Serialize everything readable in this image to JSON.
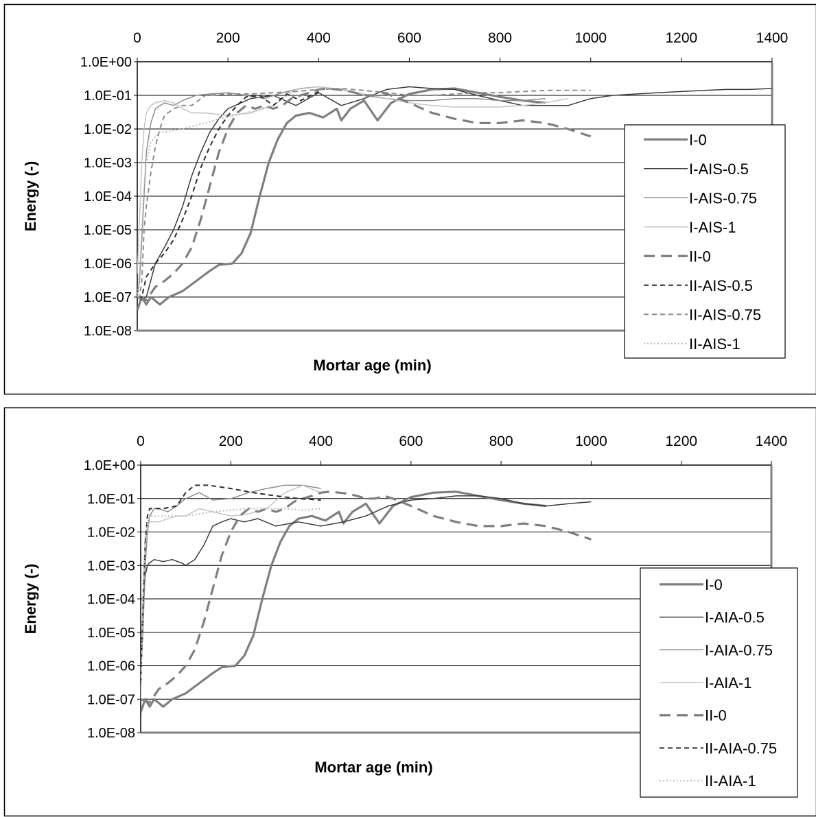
{
  "chart_data": [
    {
      "type": "line",
      "title": "",
      "xlabel": "Mortar age (min)",
      "ylabel": "Energy (-)",
      "x_axis_position": "top",
      "xlim": [
        0,
        1400
      ],
      "x_ticks": [
        "0",
        "200",
        "400",
        "600",
        "800",
        "1000",
        "1200",
        "1400"
      ],
      "y_scale": "log",
      "ylim": [
        1e-08,
        1
      ],
      "y_ticks": [
        "1.0E+00",
        "1.0E-01",
        "1.0E-02",
        "1.0E-03",
        "1.0E-04",
        "1.0E-05",
        "1.0E-06",
        "1.0E-07",
        "1.0E-08"
      ],
      "grid": "horizontal",
      "legend_position": "right",
      "series": [
        {
          "name": "I-0",
          "color": "#7f7f7f",
          "style": "solid-thick",
          "x": [
            0,
            10,
            20,
            30,
            50,
            70,
            100,
            130,
            160,
            180,
            210,
            230,
            250,
            270,
            290,
            310,
            330,
            350,
            380,
            410,
            440,
            450,
            470,
            500,
            530,
            560,
            600,
            650,
            700,
            750,
            800,
            850,
            900
          ],
          "y": [
            4e-08,
            1e-07,
            6e-08,
            1e-07,
            6e-08,
            1e-07,
            1.5e-07,
            3e-07,
            6e-07,
            9e-07,
            1e-06,
            2e-06,
            8e-06,
            0.0001,
            0.001,
            0.005,
            0.015,
            0.025,
            0.03,
            0.022,
            0.04,
            0.018,
            0.04,
            0.07,
            0.018,
            0.06,
            0.11,
            0.15,
            0.16,
            0.12,
            0.09,
            0.07,
            0.06
          ]
        },
        {
          "name": "I-AIS-0.5",
          "color": "#3a3a3a",
          "style": "solid-thin",
          "x": [
            0,
            10,
            20,
            40,
            60,
            80,
            100,
            120,
            140,
            160,
            180,
            200,
            250,
            300,
            350,
            400,
            450,
            500,
            550,
            600,
            650,
            700,
            750,
            800,
            850,
            900,
            950,
            1000,
            1050,
            1100,
            1150,
            1200,
            1250,
            1300,
            1350,
            1400
          ],
          "y": [
            1e-07,
            8e-08,
            1e-07,
            1e-06,
            3e-06,
            1e-05,
            5e-05,
            0.0004,
            0.002,
            0.008,
            0.02,
            0.04,
            0.08,
            0.1,
            0.05,
            0.12,
            0.05,
            0.08,
            0.15,
            0.18,
            0.16,
            0.15,
            0.1,
            0.07,
            0.05,
            0.05,
            0.05,
            0.08,
            0.1,
            0.11,
            0.12,
            0.13,
            0.14,
            0.15,
            0.15,
            0.16
          ]
        },
        {
          "name": "I-AIS-0.75",
          "color": "#8c8c8c",
          "style": "solid-thin",
          "x": [
            0,
            5,
            10,
            15,
            20,
            30,
            40,
            60,
            80,
            100,
            130,
            160,
            200,
            240,
            280,
            320,
            360,
            400,
            450,
            500,
            550,
            600,
            650,
            700,
            750,
            800,
            850,
            900
          ],
          "y": [
            1e-07,
            3e-07,
            5e-06,
            0.0001,
            0.002,
            0.015,
            0.04,
            0.06,
            0.05,
            0.07,
            0.1,
            0.11,
            0.12,
            0.1,
            0.08,
            0.12,
            0.16,
            0.18,
            0.15,
            0.1,
            0.08,
            0.07,
            0.07,
            0.08,
            0.08,
            0.07,
            0.07,
            0.08
          ]
        },
        {
          "name": "I-AIS-1",
          "color": "#c4c4c4",
          "style": "solid-thin",
          "x": [
            0,
            5,
            10,
            15,
            20,
            30,
            40,
            60,
            80,
            100,
            120,
            150,
            200,
            250,
            300,
            350,
            400,
            450,
            500,
            550,
            600,
            650,
            700,
            750,
            800,
            850,
            900,
            950
          ],
          "y": [
            5e-07,
            2e-05,
            0.001,
            0.01,
            0.03,
            0.05,
            0.06,
            0.07,
            0.06,
            0.04,
            0.03,
            0.03,
            0.025,
            0.03,
            0.05,
            0.15,
            0.18,
            0.15,
            0.11,
            0.08,
            0.06,
            0.05,
            0.045,
            0.045,
            0.045,
            0.05,
            0.06,
            0.08
          ]
        },
        {
          "name": "II-0",
          "color": "#7f7f7f",
          "style": "long-dash-thick",
          "x": [
            0,
            20,
            40,
            60,
            80,
            100,
            120,
            140,
            160,
            180,
            200,
            220,
            240,
            260,
            280,
            300,
            320,
            340,
            360,
            380,
            400,
            420,
            440,
            460,
            480,
            500,
            520,
            540,
            560,
            600,
            650,
            700,
            750,
            800,
            850,
            900,
            950,
            1000
          ],
          "y": [
            1e-07,
            8e-08,
            2e-07,
            3e-07,
            5e-07,
            1e-06,
            3e-06,
            2e-05,
            0.0002,
            0.002,
            0.01,
            0.03,
            0.05,
            0.04,
            0.05,
            0.04,
            0.05,
            0.08,
            0.1,
            0.12,
            0.15,
            0.16,
            0.15,
            0.14,
            0.12,
            0.1,
            0.1,
            0.12,
            0.1,
            0.06,
            0.03,
            0.02,
            0.015,
            0.015,
            0.018,
            0.015,
            0.01,
            0.006
          ]
        },
        {
          "name": "II-AIS-0.5",
          "color": "#2a2a2a",
          "style": "dash",
          "x": [
            0,
            10,
            20,
            40,
            60,
            80,
            100,
            120,
            140,
            160,
            180,
            200,
            220,
            240,
            270,
            300,
            330,
            360,
            400
          ],
          "y": [
            1e-07,
            1e-07,
            4e-07,
            1e-06,
            2e-06,
            5e-06,
            2e-05,
            0.0001,
            0.0007,
            0.003,
            0.01,
            0.025,
            0.05,
            0.09,
            0.1,
            0.05,
            0.11,
            0.07,
            0.13
          ]
        },
        {
          "name": "II-AIS-0.75",
          "color": "#8c8c8c",
          "style": "dash",
          "x": [
            0,
            5,
            10,
            15,
            20,
            30,
            40,
            50,
            60,
            80,
            100,
            120,
            150,
            200,
            250,
            300,
            350,
            400,
            450,
            500,
            550,
            600,
            650,
            700,
            750,
            800,
            850,
            900,
            950,
            1000
          ],
          "y": [
            1e-07,
            1e-07,
            3e-07,
            1e-05,
            5e-05,
            0.0005,
            0.003,
            0.01,
            0.025,
            0.04,
            0.05,
            0.05,
            0.1,
            0.11,
            0.11,
            0.12,
            0.13,
            0.15,
            0.16,
            0.14,
            0.12,
            0.1,
            0.1,
            0.11,
            0.12,
            0.12,
            0.13,
            0.14,
            0.14,
            0.14
          ]
        },
        {
          "name": "II-AIS-1",
          "color": "#b8b8b8",
          "style": "dot",
          "x": [
            0,
            5,
            10,
            15,
            20,
            30,
            40,
            50,
            60,
            80,
            100,
            120,
            150,
            180,
            210,
            240,
            270,
            300
          ],
          "y": [
            1e-07,
            5e-07,
            1e-05,
            0.0002,
            0.001,
            0.004,
            0.006,
            0.008,
            0.008,
            0.009,
            0.01,
            0.012,
            0.015,
            0.02,
            0.025,
            0.03,
            0.04,
            0.05
          ]
        }
      ]
    },
    {
      "type": "line",
      "title": "",
      "xlabel": "Mortar age (min)",
      "ylabel": "Energy (-)",
      "x_axis_position": "top",
      "xlim": [
        0,
        1400
      ],
      "x_ticks": [
        "0",
        "200",
        "400",
        "600",
        "800",
        "1000",
        "1200",
        "1400"
      ],
      "y_scale": "log",
      "ylim": [
        1e-08,
        1
      ],
      "y_ticks": [
        "1.0E+00",
        "1.0E-01",
        "1.0E-02",
        "1.0E-03",
        "1.0E-04",
        "1.0E-05",
        "1.0E-06",
        "1.0E-07",
        "1.0E-08"
      ],
      "grid": "horizontal",
      "legend_position": "right",
      "series": [
        {
          "name": "I-0",
          "color": "#7f7f7f",
          "style": "solid-thick",
          "x": [
            0,
            10,
            20,
            30,
            50,
            70,
            100,
            130,
            160,
            180,
            210,
            230,
            250,
            270,
            290,
            310,
            330,
            350,
            380,
            410,
            440,
            450,
            470,
            500,
            530,
            560,
            600,
            650,
            700,
            750,
            800,
            850,
            900
          ],
          "y": [
            4e-08,
            1e-07,
            6e-08,
            1e-07,
            6e-08,
            1e-07,
            1.5e-07,
            3e-07,
            6e-07,
            9e-07,
            1e-06,
            2e-06,
            8e-06,
            0.0001,
            0.001,
            0.005,
            0.015,
            0.025,
            0.03,
            0.022,
            0.04,
            0.018,
            0.04,
            0.07,
            0.018,
            0.06,
            0.11,
            0.15,
            0.16,
            0.12,
            0.09,
            0.07,
            0.06
          ]
        },
        {
          "name": "I-AIA-0.5",
          "color": "#3a3a3a",
          "style": "solid-thin",
          "x": [
            0,
            5,
            10,
            15,
            20,
            30,
            50,
            70,
            90,
            100,
            120,
            140,
            160,
            180,
            200,
            230,
            260,
            300,
            350,
            400,
            450,
            500,
            550,
            600,
            650,
            700,
            750,
            800,
            850,
            900,
            950,
            1000
          ],
          "y": [
            3e-07,
            5e-05,
            0.0005,
            0.001,
            0.0012,
            0.0015,
            0.0013,
            0.0015,
            0.0012,
            0.001,
            0.0015,
            0.004,
            0.015,
            0.02,
            0.025,
            0.02,
            0.025,
            0.015,
            0.02,
            0.015,
            0.02,
            0.03,
            0.06,
            0.09,
            0.1,
            0.12,
            0.12,
            0.1,
            0.07,
            0.06,
            0.07,
            0.08
          ]
        },
        {
          "name": "I-AIA-0.75",
          "color": "#8c8c8c",
          "style": "solid-thin",
          "x": [
            0,
            5,
            10,
            15,
            20,
            30,
            40,
            60,
            80,
            100,
            130,
            160,
            200,
            240,
            280,
            320,
            360,
            400
          ],
          "y": [
            5e-07,
            1e-05,
            0.001,
            0.01,
            0.03,
            0.05,
            0.05,
            0.04,
            0.06,
            0.1,
            0.15,
            0.09,
            0.1,
            0.15,
            0.2,
            0.25,
            0.25,
            0.2
          ]
        },
        {
          "name": "I-AIA-1",
          "color": "#c4c4c4",
          "style": "solid-thin",
          "x": [
            0,
            5,
            10,
            15,
            20,
            40,
            60,
            80,
            100,
            130,
            160,
            200,
            240,
            280,
            320,
            360,
            400
          ],
          "y": [
            1e-07,
            0.0001,
            0.005,
            0.015,
            0.02,
            0.02,
            0.025,
            0.03,
            0.03,
            0.05,
            0.04,
            0.03,
            0.035,
            0.05,
            0.15,
            0.25,
            0.15
          ]
        },
        {
          "name": "II-0",
          "color": "#7f7f7f",
          "style": "long-dash-thick",
          "x": [
            0,
            20,
            40,
            60,
            80,
            100,
            120,
            140,
            160,
            180,
            200,
            220,
            240,
            260,
            280,
            300,
            320,
            340,
            360,
            380,
            400,
            420,
            440,
            460,
            480,
            500,
            520,
            540,
            560,
            600,
            650,
            700,
            750,
            800,
            850,
            900,
            950,
            1000
          ],
          "y": [
            1e-07,
            8e-08,
            2e-07,
            3e-07,
            5e-07,
            1e-06,
            3e-06,
            2e-05,
            0.0002,
            0.002,
            0.01,
            0.03,
            0.05,
            0.04,
            0.05,
            0.04,
            0.05,
            0.08,
            0.1,
            0.12,
            0.15,
            0.16,
            0.15,
            0.14,
            0.12,
            0.1,
            0.1,
            0.12,
            0.1,
            0.06,
            0.03,
            0.02,
            0.015,
            0.015,
            0.018,
            0.015,
            0.01,
            0.006
          ]
        },
        {
          "name": "II-AIA-0.75",
          "color": "#2a2a2a",
          "style": "dash",
          "x": [
            0,
            5,
            10,
            15,
            20,
            30,
            50,
            80,
            100,
            120,
            150,
            200,
            250,
            300,
            350,
            400
          ],
          "y": [
            3e-07,
            5e-05,
            0.005,
            0.03,
            0.05,
            0.05,
            0.05,
            0.06,
            0.15,
            0.25,
            0.25,
            0.2,
            0.15,
            0.12,
            0.1,
            0.09
          ]
        },
        {
          "name": "II-AIA-1",
          "color": "#b8b8b8",
          "style": "dot",
          "x": [
            0,
            5,
            10,
            15,
            20,
            40,
            60,
            80,
            100,
            130,
            160,
            200,
            240,
            280,
            320,
            360,
            400
          ],
          "y": [
            1e-07,
            0.0001,
            0.008,
            0.02,
            0.03,
            0.03,
            0.03,
            0.03,
            0.03,
            0.035,
            0.04,
            0.045,
            0.05,
            0.05,
            0.05,
            0.045,
            0.05
          ]
        }
      ]
    }
  ]
}
